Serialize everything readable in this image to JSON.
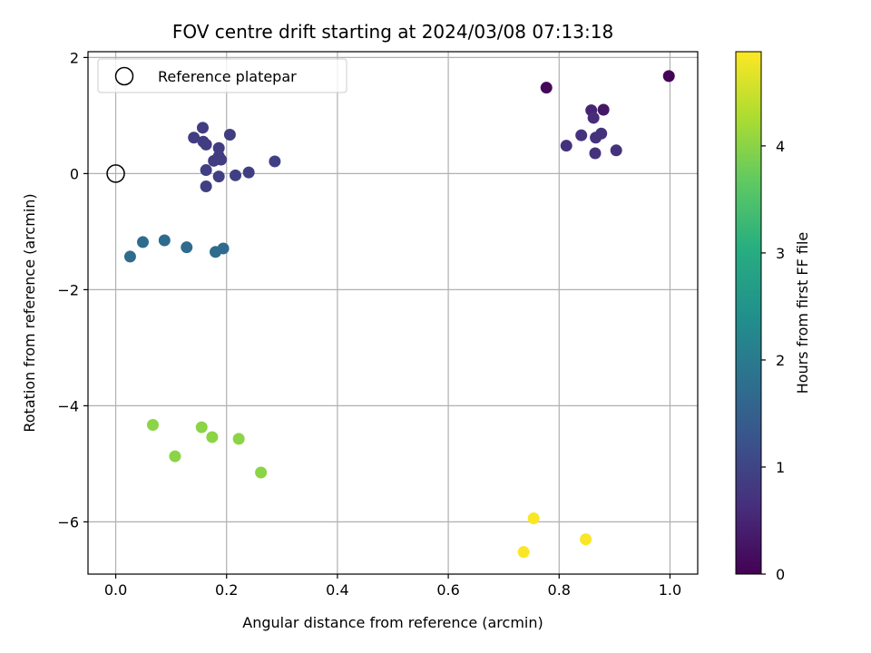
{
  "chart_data": {
    "type": "scatter",
    "title": "FOV centre drift starting at 2024/03/08 07:13:18",
    "xlabel": "Angular distance from reference (arcmin)",
    "ylabel": "Rotation from reference (arcmin)",
    "xlim": [
      -0.05,
      1.05
    ],
    "ylim": [
      -6.9,
      2.1
    ],
    "xticks": [
      0.0,
      0.2,
      0.4,
      0.6,
      0.8,
      1.0
    ],
    "xtick_labels": [
      "0.0",
      "0.2",
      "0.4",
      "0.6",
      "0.8",
      "1.0"
    ],
    "yticks": [
      2,
      0,
      -2,
      -4,
      -6
    ],
    "ytick_labels": [
      "2",
      "0",
      "−2",
      "−4",
      "−6"
    ],
    "grid": true,
    "legend": {
      "position": "top-left",
      "entries": [
        {
          "label": "Reference platepar",
          "marker": "open-circle"
        }
      ]
    },
    "reference_point": {
      "x": 0.0,
      "y": 0.0
    },
    "colorbar": {
      "label": "Hours from first FF file",
      "colormap": "viridis",
      "range": [
        0,
        4.88
      ],
      "ticks": [
        0,
        1,
        2,
        3,
        4
      ],
      "tick_labels": [
        "0",
        "1",
        "2",
        "3",
        "4"
      ]
    },
    "points": [
      {
        "x": 0.998,
        "y": 1.68,
        "c": 0.05
      },
      {
        "x": 0.777,
        "y": 1.48,
        "c": 0.1
      },
      {
        "x": 0.858,
        "y": 1.09,
        "c": 0.5
      },
      {
        "x": 0.88,
        "y": 1.1,
        "c": 0.3
      },
      {
        "x": 0.862,
        "y": 0.96,
        "c": 0.6
      },
      {
        "x": 0.84,
        "y": 0.66,
        "c": 0.7
      },
      {
        "x": 0.876,
        "y": 0.69,
        "c": 0.7
      },
      {
        "x": 0.866,
        "y": 0.62,
        "c": 0.7
      },
      {
        "x": 0.813,
        "y": 0.48,
        "c": 0.7
      },
      {
        "x": 0.903,
        "y": 0.4,
        "c": 0.7
      },
      {
        "x": 0.865,
        "y": 0.35,
        "c": 0.7
      },
      {
        "x": 0.157,
        "y": 0.79,
        "c": 0.85
      },
      {
        "x": 0.141,
        "y": 0.62,
        "c": 0.85
      },
      {
        "x": 0.158,
        "y": 0.55,
        "c": 0.85
      },
      {
        "x": 0.163,
        "y": 0.5,
        "c": 0.85
      },
      {
        "x": 0.206,
        "y": 0.67,
        "c": 0.85
      },
      {
        "x": 0.186,
        "y": 0.44,
        "c": 0.85
      },
      {
        "x": 0.186,
        "y": 0.3,
        "c": 0.85
      },
      {
        "x": 0.177,
        "y": 0.22,
        "c": 0.85
      },
      {
        "x": 0.19,
        "y": 0.24,
        "c": 0.85
      },
      {
        "x": 0.287,
        "y": 0.21,
        "c": 0.9
      },
      {
        "x": 0.163,
        "y": 0.06,
        "c": 0.9
      },
      {
        "x": 0.24,
        "y": 0.02,
        "c": 0.9
      },
      {
        "x": 0.216,
        "y": -0.03,
        "c": 0.9
      },
      {
        "x": 0.186,
        "y": -0.05,
        "c": 0.9
      },
      {
        "x": 0.163,
        "y": -0.22,
        "c": 0.9
      },
      {
        "x": 0.049,
        "y": -1.18,
        "c": 1.7
      },
      {
        "x": 0.088,
        "y": -1.15,
        "c": 1.7
      },
      {
        "x": 0.128,
        "y": -1.27,
        "c": 1.7
      },
      {
        "x": 0.194,
        "y": -1.29,
        "c": 1.7
      },
      {
        "x": 0.18,
        "y": -1.35,
        "c": 1.7
      },
      {
        "x": 0.026,
        "y": -1.43,
        "c": 1.7
      },
      {
        "x": 0.067,
        "y": -4.33,
        "c": 4.0
      },
      {
        "x": 0.155,
        "y": -4.37,
        "c": 4.0
      },
      {
        "x": 0.174,
        "y": -4.54,
        "c": 4.0
      },
      {
        "x": 0.222,
        "y": -4.57,
        "c": 4.0
      },
      {
        "x": 0.107,
        "y": -4.87,
        "c": 4.0
      },
      {
        "x": 0.262,
        "y": -5.15,
        "c": 4.0
      },
      {
        "x": 0.754,
        "y": -5.94,
        "c": 4.85
      },
      {
        "x": 0.848,
        "y": -6.3,
        "c": 4.85
      },
      {
        "x": 0.736,
        "y": -6.52,
        "c": 4.85
      }
    ]
  }
}
